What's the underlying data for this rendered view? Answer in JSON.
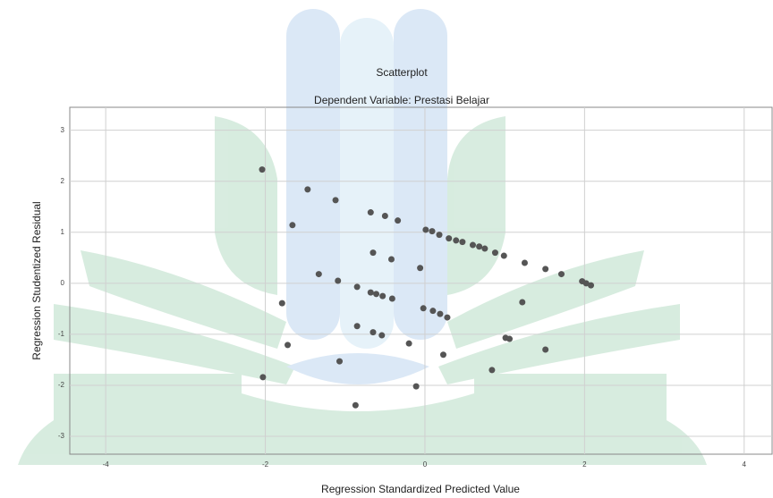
{
  "chart_data": {
    "type": "scatter",
    "title": "Scatterplot",
    "subtitle": "Dependent Variable: Prestasi Belajar",
    "x_label": "Regression Standardized Predicted Value",
    "y_label": "Regression Studentized Residual",
    "xlim": [
      -4.45,
      4.35
    ],
    "ylim": [
      -3.35,
      3.45
    ],
    "xticks": [
      -4,
      -2,
      0,
      2,
      4
    ],
    "yticks": [
      -3,
      -2,
      -1,
      0,
      1,
      2,
      3
    ],
    "grid": true,
    "color": "#555555",
    "x": [
      -2.04,
      -1.47,
      -1.12,
      -1.66,
      -0.68,
      -0.5,
      -0.34,
      0.01,
      0.09,
      0.18,
      0.3,
      0.39,
      0.47,
      0.6,
      0.68,
      0.75,
      0.88,
      0.99,
      1.25,
      1.51,
      1.71,
      1.97,
      2.02,
      2.08,
      -0.65,
      -0.42,
      -0.06,
      -1.33,
      -1.09,
      -0.85,
      -0.68,
      -0.61,
      -0.53,
      -0.41,
      -1.79,
      -0.02,
      0.1,
      0.19,
      0.28,
      1.22,
      -0.85,
      -0.65,
      -0.54,
      -0.2,
      1.01,
      1.06,
      1.51,
      -1.72,
      0.23,
      -1.07,
      0.84,
      -2.03,
      -0.11,
      -0.87
    ],
    "values": [
      2.23,
      1.84,
      1.63,
      1.14,
      1.39,
      1.32,
      1.23,
      1.05,
      1.02,
      0.95,
      0.88,
      0.84,
      0.81,
      0.75,
      0.72,
      0.68,
      0.6,
      0.54,
      0.4,
      0.28,
      0.18,
      0.04,
      0.0,
      -0.04,
      0.6,
      0.47,
      0.3,
      0.18,
      0.05,
      -0.07,
      -0.18,
      -0.21,
      -0.25,
      -0.3,
      -0.39,
      -0.49,
      -0.54,
      -0.6,
      -0.67,
      -0.37,
      -0.84,
      -0.96,
      -1.02,
      -1.18,
      -1.07,
      -1.09,
      -1.3,
      -1.21,
      -1.4,
      -1.53,
      -1.7,
      -1.84,
      -2.02,
      -2.39
    ]
  }
}
